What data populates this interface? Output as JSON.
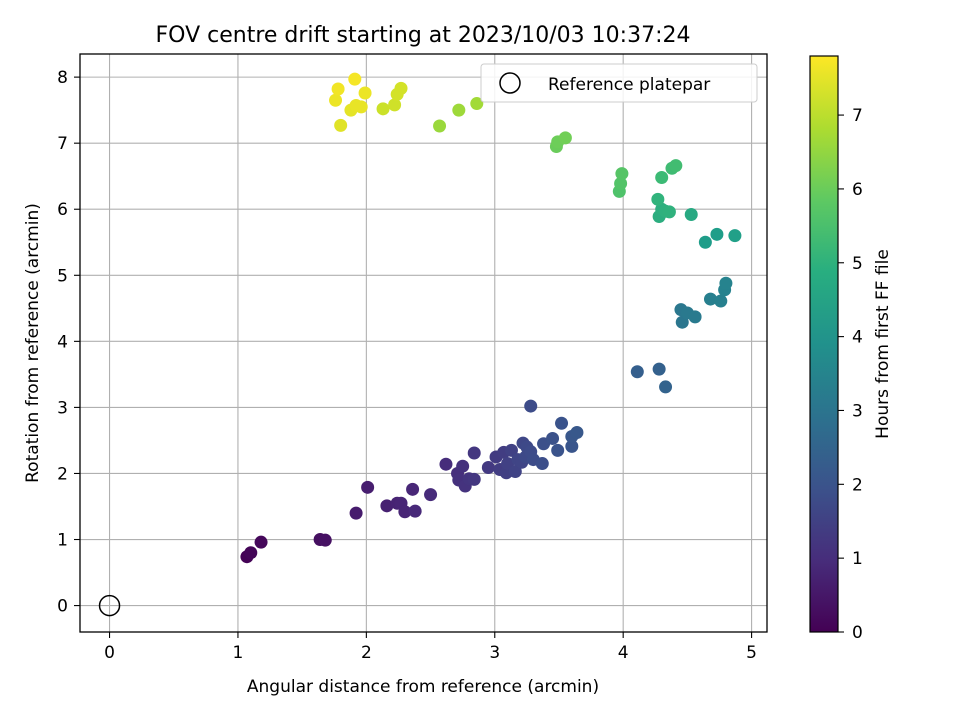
{
  "chart_data": {
    "type": "scatter",
    "title": "FOV centre drift starting at 2023/10/03 10:37:24",
    "xlabel": "Angular distance from reference (arcmin)",
    "ylabel": "Rotation from reference (arcmin)",
    "xlim": [
      -0.23,
      5.12
    ],
    "ylim": [
      -0.4,
      8.35
    ],
    "xticks": [
      0,
      1,
      2,
      3,
      4,
      5
    ],
    "yticks": [
      0,
      1,
      2,
      3,
      4,
      5,
      6,
      7,
      8
    ],
    "grid": true,
    "colormap": "viridis",
    "colorbar": {
      "label": "Hours from first FF file",
      "range": [
        0,
        7.8
      ],
      "ticks": [
        0,
        1,
        2,
        3,
        4,
        5,
        6,
        7
      ]
    },
    "legend": {
      "placement": "top-right",
      "entries": [
        "Reference platepar"
      ]
    },
    "reference_point": {
      "x": 0,
      "y": 0,
      "marker": "open-circle"
    },
    "series": [
      {
        "color_by": "hours",
        "points": [
          {
            "x": 1.07,
            "y": 0.74,
            "c": 0.05
          },
          {
            "x": 1.1,
            "y": 0.8,
            "c": 0.1
          },
          {
            "x": 1.18,
            "y": 0.96,
            "c": 0.15
          },
          {
            "x": 1.64,
            "y": 1.0,
            "c": 0.3
          },
          {
            "x": 1.68,
            "y": 0.99,
            "c": 0.35
          },
          {
            "x": 1.92,
            "y": 1.4,
            "c": 0.6
          },
          {
            "x": 2.01,
            "y": 1.79,
            "c": 0.65
          },
          {
            "x": 2.16,
            "y": 1.51,
            "c": 0.7
          },
          {
            "x": 2.24,
            "y": 1.55,
            "c": 0.75
          },
          {
            "x": 2.27,
            "y": 1.55,
            "c": 0.8
          },
          {
            "x": 2.3,
            "y": 1.42,
            "c": 0.8
          },
          {
            "x": 2.36,
            "y": 1.76,
            "c": 0.85
          },
          {
            "x": 2.38,
            "y": 1.43,
            "c": 0.9
          },
          {
            "x": 2.5,
            "y": 1.68,
            "c": 0.95
          },
          {
            "x": 2.62,
            "y": 2.14,
            "c": 1.0
          },
          {
            "x": 2.71,
            "y": 2.0,
            "c": 1.05
          },
          {
            "x": 2.72,
            "y": 1.9,
            "c": 1.1
          },
          {
            "x": 2.75,
            "y": 2.11,
            "c": 1.1
          },
          {
            "x": 2.77,
            "y": 1.81,
            "c": 1.15
          },
          {
            "x": 2.8,
            "y": 1.92,
            "c": 1.2
          },
          {
            "x": 2.84,
            "y": 2.31,
            "c": 1.25
          },
          {
            "x": 2.84,
            "y": 1.91,
            "c": 1.25
          },
          {
            "x": 2.95,
            "y": 2.09,
            "c": 1.3
          },
          {
            "x": 3.01,
            "y": 2.25,
            "c": 1.35
          },
          {
            "x": 3.04,
            "y": 2.06,
            "c": 1.4
          },
          {
            "x": 3.07,
            "y": 2.32,
            "c": 1.4
          },
          {
            "x": 3.09,
            "y": 2.01,
            "c": 1.45
          },
          {
            "x": 3.1,
            "y": 2.15,
            "c": 1.5
          },
          {
            "x": 3.13,
            "y": 2.35,
            "c": 1.5
          },
          {
            "x": 3.16,
            "y": 2.03,
            "c": 1.55
          },
          {
            "x": 3.18,
            "y": 2.21,
            "c": 1.6
          },
          {
            "x": 3.21,
            "y": 2.17,
            "c": 1.6
          },
          {
            "x": 3.22,
            "y": 2.46,
            "c": 1.65
          },
          {
            "x": 3.24,
            "y": 2.25,
            "c": 1.7
          },
          {
            "x": 3.25,
            "y": 2.4,
            "c": 1.7
          },
          {
            "x": 3.28,
            "y": 2.33,
            "c": 1.75
          },
          {
            "x": 3.3,
            "y": 2.21,
            "c": 1.8
          },
          {
            "x": 3.28,
            "y": 3.02,
            "c": 1.8
          },
          {
            "x": 3.37,
            "y": 2.15,
            "c": 1.85
          },
          {
            "x": 3.38,
            "y": 2.45,
            "c": 1.9
          },
          {
            "x": 3.45,
            "y": 2.53,
            "c": 1.95
          },
          {
            "x": 3.49,
            "y": 2.35,
            "c": 2.0
          },
          {
            "x": 3.52,
            "y": 2.76,
            "c": 2.0
          },
          {
            "x": 3.6,
            "y": 2.41,
            "c": 2.05
          },
          {
            "x": 3.6,
            "y": 2.56,
            "c": 2.1
          },
          {
            "x": 3.64,
            "y": 2.62,
            "c": 2.15
          },
          {
            "x": 4.11,
            "y": 3.54,
            "c": 2.35
          },
          {
            "x": 4.28,
            "y": 3.58,
            "c": 2.4
          },
          {
            "x": 4.33,
            "y": 3.31,
            "c": 2.45
          },
          {
            "x": 4.46,
            "y": 4.29,
            "c": 3.05
          },
          {
            "x": 4.45,
            "y": 4.48,
            "c": 3.1
          },
          {
            "x": 4.5,
            "y": 4.43,
            "c": 3.15
          },
          {
            "x": 4.56,
            "y": 4.37,
            "c": 3.2
          },
          {
            "x": 4.68,
            "y": 4.64,
            "c": 3.35
          },
          {
            "x": 4.76,
            "y": 4.61,
            "c": 3.4
          },
          {
            "x": 4.79,
            "y": 4.78,
            "c": 3.45
          },
          {
            "x": 4.8,
            "y": 4.88,
            "c": 3.5
          },
          {
            "x": 4.64,
            "y": 5.5,
            "c": 4.3
          },
          {
            "x": 4.73,
            "y": 5.62,
            "c": 4.35
          },
          {
            "x": 4.87,
            "y": 5.6,
            "c": 4.4
          },
          {
            "x": 4.53,
            "y": 5.92,
            "c": 4.7
          },
          {
            "x": 4.28,
            "y": 5.89,
            "c": 4.85
          },
          {
            "x": 4.3,
            "y": 6.0,
            "c": 4.9
          },
          {
            "x": 4.33,
            "y": 5.97,
            "c": 4.95
          },
          {
            "x": 4.36,
            "y": 5.96,
            "c": 5.0
          },
          {
            "x": 4.27,
            "y": 6.15,
            "c": 5.05
          },
          {
            "x": 4.3,
            "y": 6.48,
            "c": 5.3
          },
          {
            "x": 4.38,
            "y": 6.62,
            "c": 5.35
          },
          {
            "x": 4.41,
            "y": 6.66,
            "c": 5.4
          },
          {
            "x": 3.97,
            "y": 6.27,
            "c": 5.6
          },
          {
            "x": 3.98,
            "y": 6.39,
            "c": 5.65
          },
          {
            "x": 3.99,
            "y": 6.54,
            "c": 5.7
          },
          {
            "x": 3.48,
            "y": 6.95,
            "c": 6.0
          },
          {
            "x": 3.49,
            "y": 7.02,
            "c": 6.05
          },
          {
            "x": 3.55,
            "y": 7.08,
            "c": 6.1
          },
          {
            "x": 2.57,
            "y": 7.26,
            "c": 6.6
          },
          {
            "x": 2.72,
            "y": 7.5,
            "c": 6.65
          },
          {
            "x": 2.86,
            "y": 7.6,
            "c": 6.7
          },
          {
            "x": 2.13,
            "y": 7.52,
            "c": 7.2
          },
          {
            "x": 2.22,
            "y": 7.58,
            "c": 7.25
          },
          {
            "x": 2.24,
            "y": 7.74,
            "c": 7.3
          },
          {
            "x": 2.27,
            "y": 7.83,
            "c": 7.3
          },
          {
            "x": 1.8,
            "y": 7.27,
            "c": 7.45
          },
          {
            "x": 1.88,
            "y": 7.5,
            "c": 7.5
          },
          {
            "x": 1.92,
            "y": 7.57,
            "c": 7.55
          },
          {
            "x": 1.96,
            "y": 7.55,
            "c": 7.55
          },
          {
            "x": 1.99,
            "y": 7.76,
            "c": 7.6
          },
          {
            "x": 1.76,
            "y": 7.65,
            "c": 7.6
          },
          {
            "x": 1.78,
            "y": 7.82,
            "c": 7.65
          },
          {
            "x": 1.91,
            "y": 7.97,
            "c": 7.7
          }
        ]
      }
    ]
  }
}
